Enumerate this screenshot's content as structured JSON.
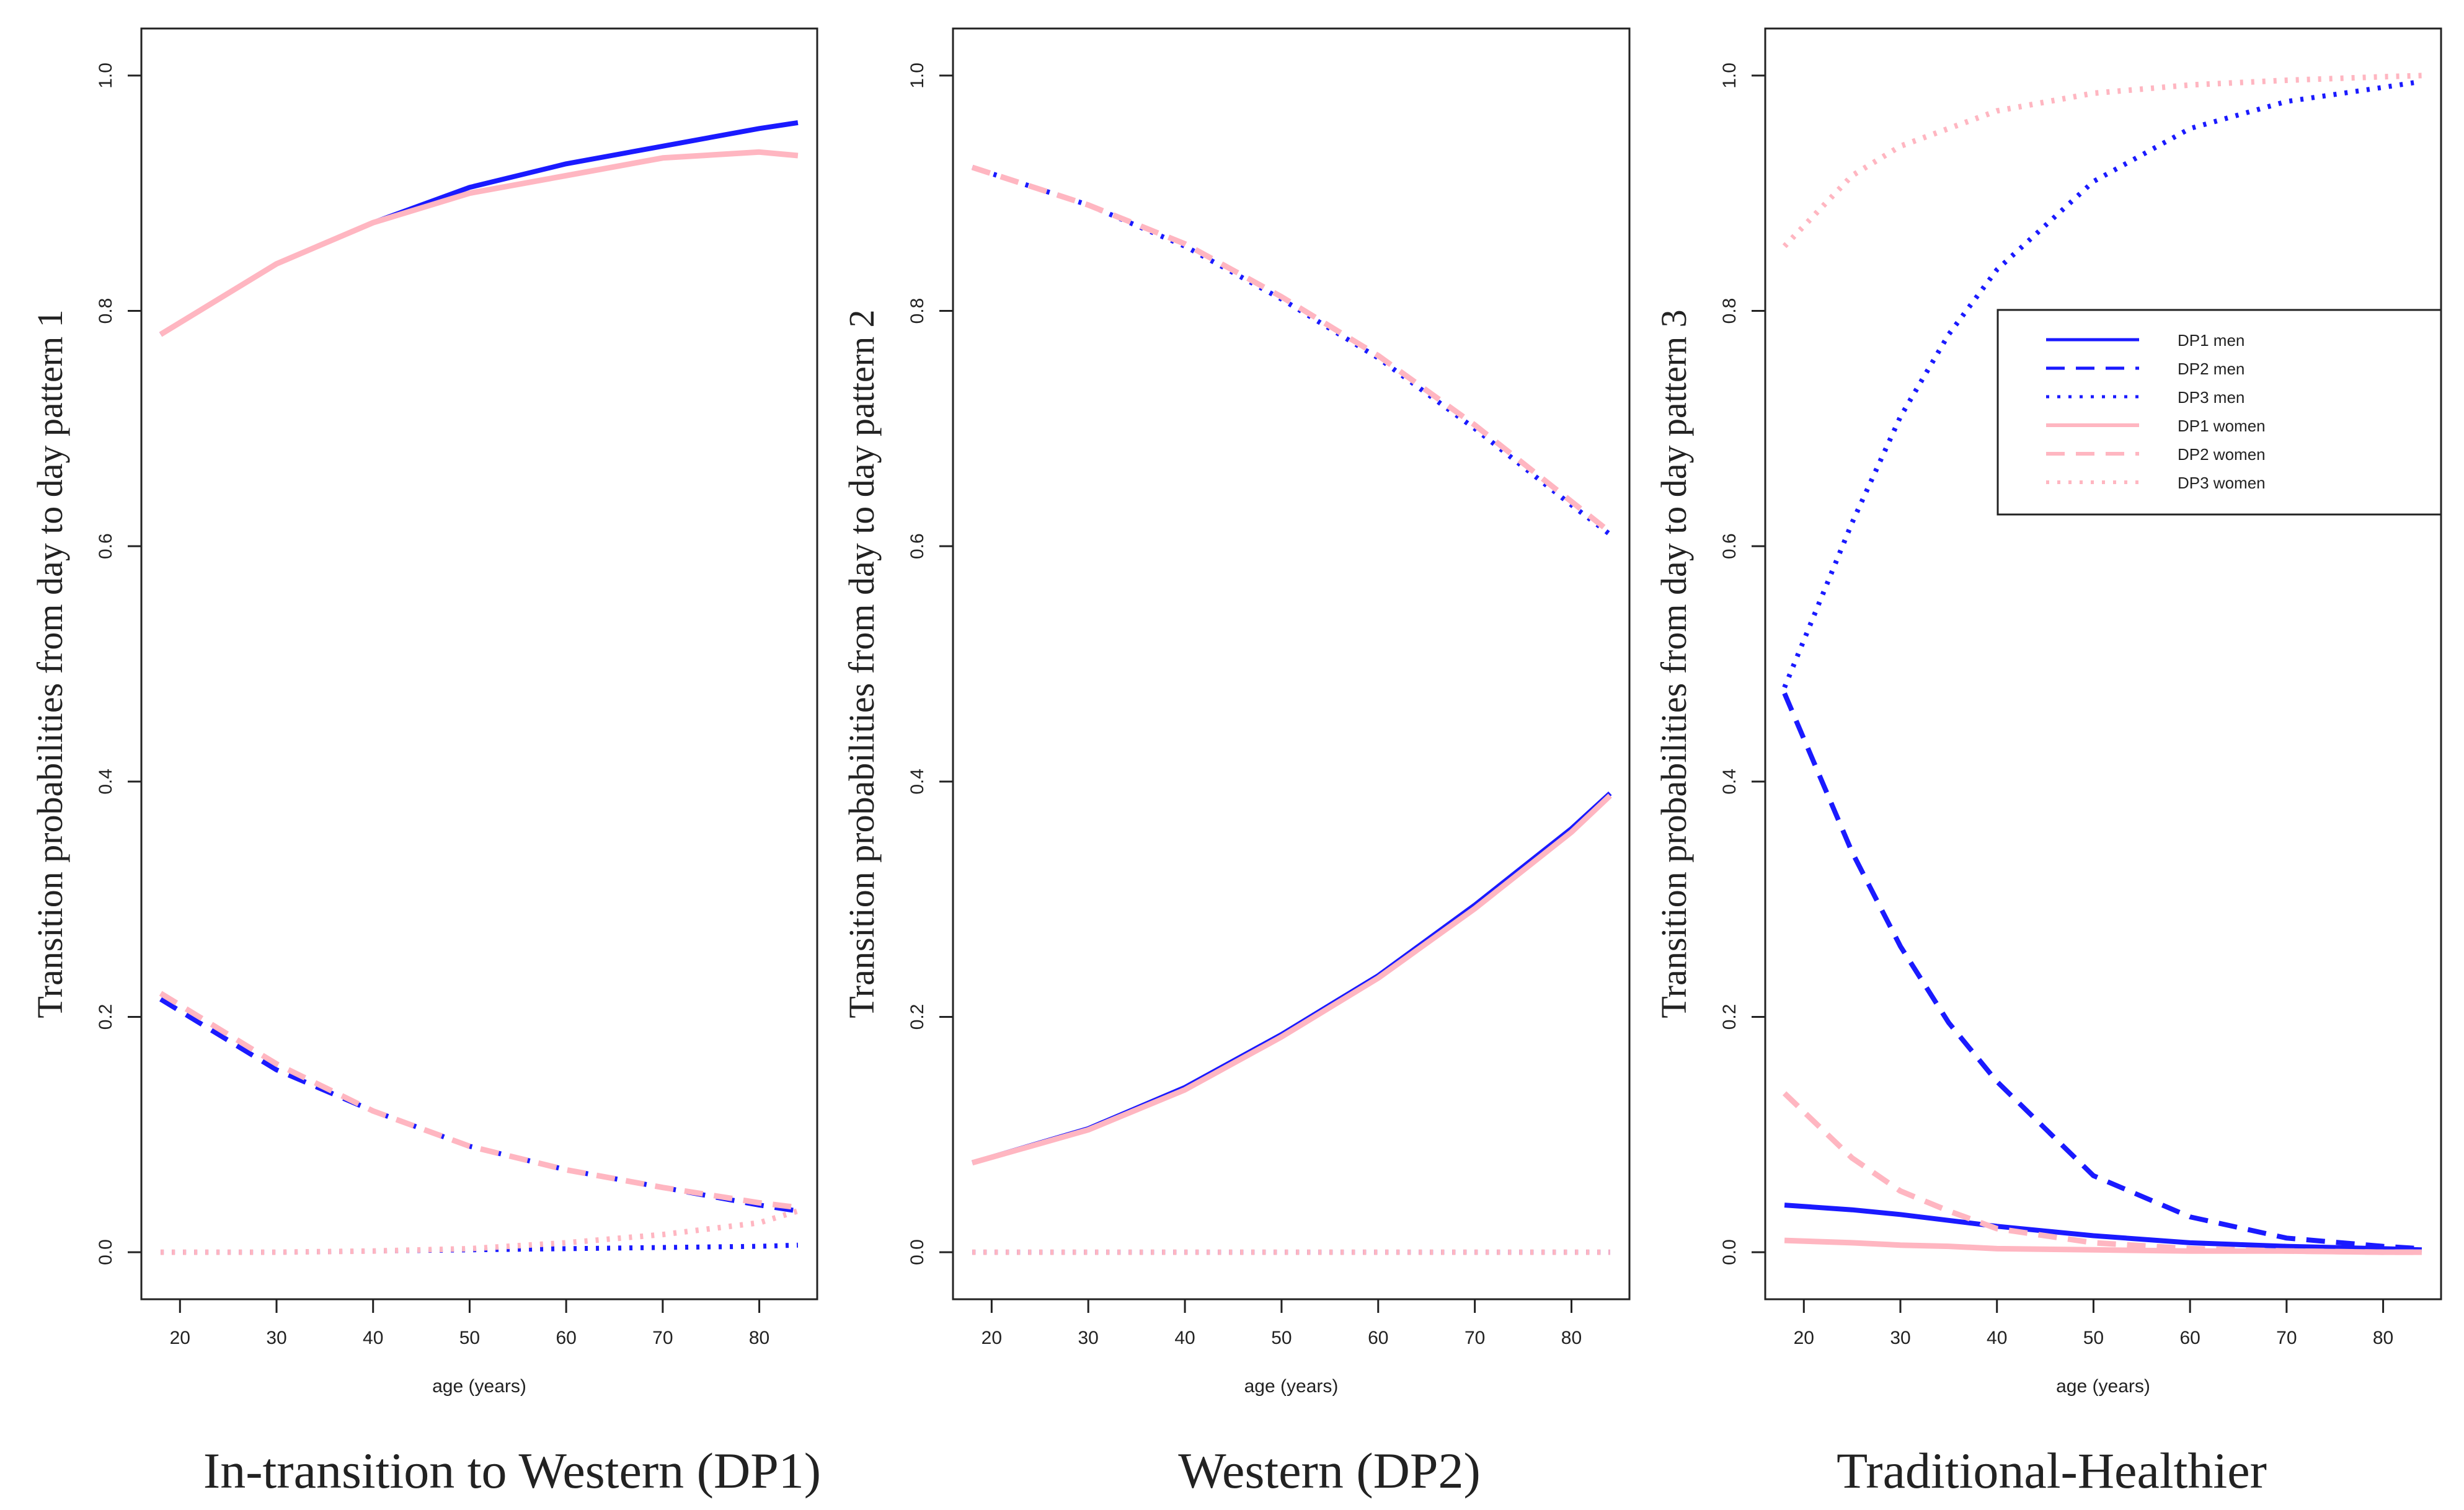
{
  "colors": {
    "men": "#1a1aff",
    "women": "#ffb6c1",
    "axis": "#222222"
  },
  "chart_data": [
    {
      "type": "line",
      "caption": "In-transition to Western (DP1)",
      "ylabel": "Transition probabilities from day to day pattern 1",
      "xlabel": "age (years)",
      "xlim": [
        16,
        86
      ],
      "ylim": [
        -0.04,
        1.04
      ],
      "xticks": [
        "20",
        "30",
        "40",
        "50",
        "60",
        "70",
        "80"
      ],
      "yticks": [
        "0.0",
        "0.2",
        "0.4",
        "0.6",
        "0.8",
        "1.0"
      ],
      "x": [
        18,
        30,
        40,
        50,
        60,
        70,
        80,
        84
      ],
      "series": [
        {
          "name": "DP1 men",
          "style": "solid",
          "values": [
            0.78,
            0.84,
            0.875,
            0.905,
            0.925,
            0.94,
            0.955,
            0.96
          ]
        },
        {
          "name": "DP2 men",
          "style": "dashed",
          "values": [
            0.215,
            0.155,
            0.12,
            0.09,
            0.07,
            0.055,
            0.04,
            0.035
          ]
        },
        {
          "name": "DP3 men",
          "style": "dotted",
          "values": [
            0.0,
            0.0,
            0.001,
            0.002,
            0.003,
            0.004,
            0.005,
            0.006
          ]
        },
        {
          "name": "DP1 women",
          "style": "solid",
          "values": [
            0.78,
            0.84,
            0.875,
            0.9,
            0.915,
            0.93,
            0.935,
            0.932
          ]
        },
        {
          "name": "DP2 women",
          "style": "dashed",
          "values": [
            0.22,
            0.16,
            0.12,
            0.09,
            0.07,
            0.055,
            0.042,
            0.038
          ]
        },
        {
          "name": "DP3 women",
          "style": "dotted",
          "values": [
            0.0,
            0.0,
            0.001,
            0.003,
            0.008,
            0.015,
            0.025,
            0.035
          ]
        }
      ]
    },
    {
      "type": "line",
      "caption": "Western (DP2)",
      "ylabel": "Transition probabilities from day to day pattern 2",
      "xlabel": "age (years)",
      "xlim": [
        16,
        86
      ],
      "ylim": [
        -0.04,
        1.04
      ],
      "xticks": [
        "20",
        "30",
        "40",
        "50",
        "60",
        "70",
        "80"
      ],
      "yticks": [
        "0.0",
        "0.2",
        "0.4",
        "0.6",
        "0.8",
        "1.0"
      ],
      "x": [
        18,
        30,
        40,
        50,
        60,
        70,
        80,
        84
      ],
      "series": [
        {
          "name": "DP1 men",
          "style": "solid",
          "values": [
            0.076,
            0.105,
            0.14,
            0.185,
            0.235,
            0.295,
            0.36,
            0.39
          ]
        },
        {
          "name": "DP2 men",
          "style": "dotted",
          "values": [
            0.922,
            0.89,
            0.855,
            0.81,
            0.76,
            0.7,
            0.635,
            0.61
          ]
        },
        {
          "name": "DP3 men",
          "style": "dotted",
          "values": [
            0.0,
            0.0,
            0.0,
            0.0,
            0.0,
            0.0,
            0.0,
            0.0
          ]
        },
        {
          "name": "DP1 women",
          "style": "solid",
          "values": [
            0.076,
            0.104,
            0.138,
            0.183,
            0.233,
            0.292,
            0.357,
            0.388
          ]
        },
        {
          "name": "DP2 women",
          "style": "dashed",
          "values": [
            0.922,
            0.89,
            0.857,
            0.812,
            0.762,
            0.703,
            0.638,
            0.612
          ]
        },
        {
          "name": "DP3 women",
          "style": "dotted",
          "values": [
            0.0,
            0.0,
            0.0,
            0.0,
            0.0,
            0.0,
            0.0,
            0.0
          ]
        }
      ]
    },
    {
      "type": "line",
      "caption": "Traditional-Healthier",
      "ylabel": "Transition probabilities from day to day pattern 3",
      "xlabel": "age (years)",
      "xlim": [
        16,
        86
      ],
      "ylim": [
        -0.04,
        1.04
      ],
      "xticks": [
        "20",
        "30",
        "40",
        "50",
        "60",
        "70",
        "80"
      ],
      "yticks": [
        "0.0",
        "0.2",
        "0.4",
        "0.6",
        "0.8",
        "1.0"
      ],
      "x": [
        18,
        25,
        30,
        35,
        40,
        50,
        60,
        70,
        80,
        84
      ],
      "series": [
        {
          "name": "DP1 men",
          "style": "solid",
          "values": [
            0.04,
            0.036,
            0.032,
            0.027,
            0.022,
            0.014,
            0.008,
            0.005,
            0.003,
            0.002
          ]
        },
        {
          "name": "DP2 men",
          "style": "dashed",
          "values": [
            0.475,
            0.34,
            0.26,
            0.195,
            0.145,
            0.065,
            0.03,
            0.012,
            0.005,
            0.003
          ]
        },
        {
          "name": "DP3 men",
          "style": "dotted",
          "values": [
            0.48,
            0.62,
            0.71,
            0.78,
            0.835,
            0.91,
            0.955,
            0.978,
            0.99,
            0.995
          ]
        },
        {
          "name": "DP1 women",
          "style": "solid",
          "values": [
            0.01,
            0.008,
            0.006,
            0.005,
            0.003,
            0.002,
            0.001,
            0.001,
            0.0,
            0.0
          ]
        },
        {
          "name": "DP2 women",
          "style": "dashed",
          "values": [
            0.135,
            0.08,
            0.052,
            0.035,
            0.02,
            0.008,
            0.003,
            0.001,
            0.0,
            0.0
          ]
        },
        {
          "name": "DP3 women",
          "style": "dotted",
          "values": [
            0.855,
            0.915,
            0.94,
            0.955,
            0.97,
            0.985,
            0.992,
            0.996,
            0.999,
            1.0
          ]
        }
      ],
      "legend": {
        "position": "top-right",
        "entries": [
          "DP1 men",
          "DP2 men",
          "DP3 men",
          "DP1 women",
          "DP2 women",
          "DP3 women"
        ]
      }
    }
  ]
}
